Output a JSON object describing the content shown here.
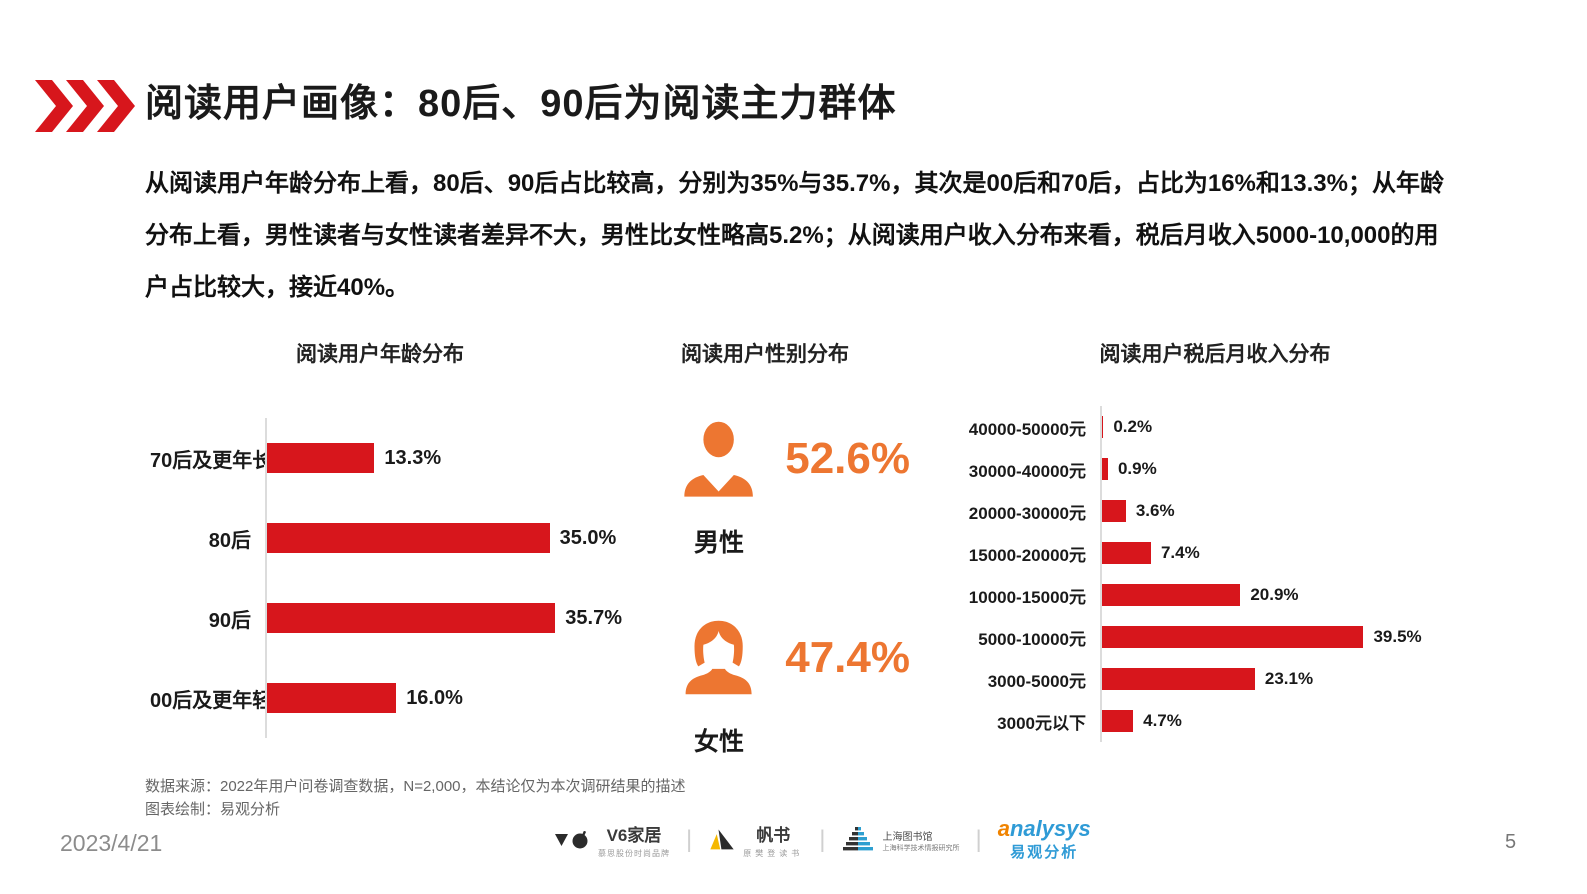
{
  "header": {
    "title": "阅读用户画像：80后、90后为阅读主力群体"
  },
  "intro": {
    "text": "从阅读用户年龄分布上看，80后、90后占比较高，分别为35%与35.7%，其次是00后和70后，占比为16%和13.3%；从年龄分布上看，男性读者与女性读者差异不大，男性比女性略高5.2%；从阅读用户收入分布来看，税后月收入5000-10,000的用户占比较大，接近40%。"
  },
  "colors": {
    "bar_red": "#d7161c",
    "chevron_red": "#d7161c",
    "gender_orange": "#ed7631",
    "analysys_blue": "#2f9bd6",
    "analysys_orange": "#f08300"
  },
  "chart_data": [
    {
      "id": "age",
      "type": "bar",
      "orientation": "horizontal",
      "title": "阅读用户年龄分布",
      "categories": [
        "70后及更年长",
        "80后",
        "90后",
        "00后及更年轻"
      ],
      "values": [
        13.3,
        35.0,
        35.7,
        16.0
      ],
      "labels": [
        "13.3%",
        "35.0%",
        "35.7%",
        "16.0%"
      ],
      "xlim": [
        0,
        40
      ],
      "bar_color": "#d7161c",
      "grid": false,
      "legend": "none"
    },
    {
      "id": "gender",
      "type": "pictogram",
      "title": "阅读用户性别分布",
      "items": [
        {
          "label": "男性",
          "value": 52.6,
          "display": "52.6%",
          "icon": "male-icon"
        },
        {
          "label": "女性",
          "value": 47.4,
          "display": "47.4%",
          "icon": "female-icon"
        }
      ]
    },
    {
      "id": "income",
      "type": "bar",
      "orientation": "horizontal",
      "title": "阅读用户税后月收入分布",
      "categories": [
        "40000-50000元",
        "30000-40000元",
        "20000-30000元",
        "15000-20000元",
        "10000-15000元",
        "5000-10000元",
        "3000-5000元",
        "3000元以下"
      ],
      "values": [
        0.2,
        0.9,
        3.6,
        7.4,
        20.9,
        39.5,
        23.1,
        4.7
      ],
      "labels": [
        "0.2%",
        "0.9%",
        "3.6%",
        "7.4%",
        "20.9%",
        "39.5%",
        "23.1%",
        "4.7%"
      ],
      "xlim": [
        0,
        42
      ],
      "bar_color": "#d7161c",
      "grid": false,
      "legend": "none"
    }
  ],
  "footnote": {
    "line1": "数据来源：2022年用户问卷调查数据，N=2,000，本结论仅为本次调研结果的描述",
    "line2": "图表绘制：易观分析"
  },
  "footer": {
    "date": "2023/4/21",
    "page_number": "5",
    "logos": [
      {
        "name": "V6家居",
        "sub": "慕思股份时尚品牌"
      },
      {
        "name": "帆书",
        "sub": "原樊登读书"
      },
      {
        "name": "上海图书馆",
        "sub": "上海科学技术情报研究所"
      },
      {
        "name": "analysys",
        "sub": "易观分析"
      }
    ]
  }
}
